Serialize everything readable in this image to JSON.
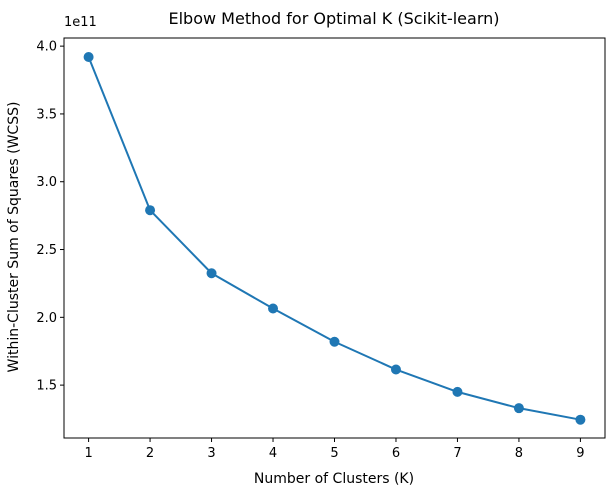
{
  "chart_data": {
    "type": "line",
    "title": "Elbow Method for Optimal K (Scikit-learn)",
    "xlabel": "Number of Clusters (K)",
    "ylabel": "Within-Cluster Sum of Squares (WCSS)",
    "y_offset_label": "1e11",
    "x": [
      1,
      2,
      3,
      4,
      5,
      6,
      7,
      8,
      9
    ],
    "y": [
      392000000000.0,
      279000000000.0,
      232500000000.0,
      206500000000.0,
      182000000000.0,
      161500000000.0,
      145000000000.0,
      133000000000.0,
      124500000000.0
    ],
    "xlim": [
      0.6,
      9.4
    ],
    "ylim": [
      111000000000.0,
      406000000000.0
    ],
    "x_ticks": [
      1,
      2,
      3,
      4,
      5,
      6,
      7,
      8,
      9
    ],
    "x_tick_labels": [
      "1",
      "2",
      "3",
      "4",
      "5",
      "6",
      "7",
      "8",
      "9"
    ],
    "y_ticks": [
      150000000000.0,
      200000000000.0,
      250000000000.0,
      300000000000.0,
      350000000000.0,
      400000000000.0
    ],
    "y_tick_labels": [
      "1.5",
      "2.0",
      "2.5",
      "3.0",
      "3.5",
      "4.0"
    ],
    "grid": false,
    "marker": "circle",
    "colors": {
      "series": "#1f77b4",
      "axes": "#000000"
    }
  }
}
